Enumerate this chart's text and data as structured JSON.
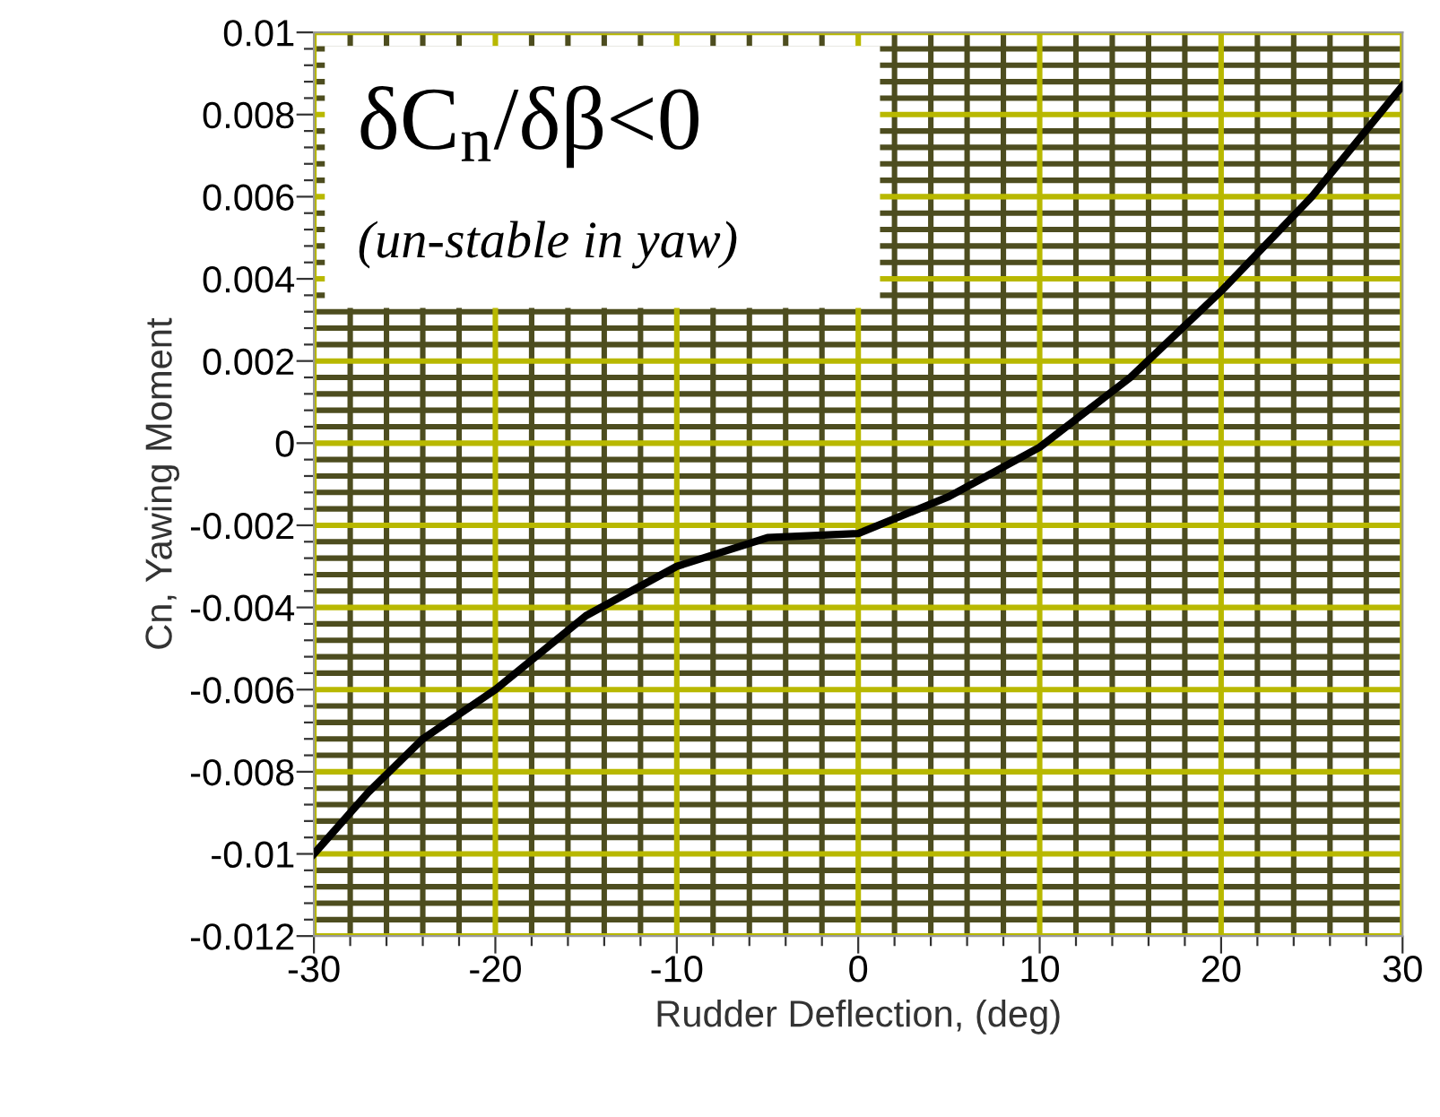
{
  "chart_data": {
    "type": "line",
    "xlabel": "Rudder Deflection, (deg)",
    "ylabel": "Cn, Yawing Moment",
    "annotations": [
      "δC$_{n}$/δβ<0",
      "(un-stable in yaw)"
    ],
    "series": [
      {
        "color": "#000000",
        "x": [
          -30,
          -27,
          -24,
          -20,
          -15,
          -10,
          -5,
          0,
          5,
          10,
          15,
          20,
          25,
          30
        ],
        "values": [
          -0.01,
          -0.0085,
          -0.0072,
          -0.006,
          -0.0042,
          -0.003,
          -0.0023,
          -0.0022,
          -0.0013,
          -0.0001,
          0.0016,
          0.0037,
          0.006,
          0.0087
        ]
      }
    ],
    "xlim": [
      -30,
      30
    ],
    "xticks": [
      -30,
      {
        "value": -28,
        "label": null
      },
      {
        "value": -26,
        "label": null
      },
      {
        "value": -24,
        "label": null
      },
      {
        "value": -22,
        "label": null
      },
      -20,
      {
        "value": -18,
        "label": null
      },
      {
        "value": -16,
        "label": null
      },
      {
        "value": -14,
        "label": null
      },
      {
        "value": -12,
        "label": null
      },
      -10,
      {
        "value": -8,
        "label": null
      },
      {
        "value": -6,
        "label": null
      },
      {
        "value": -4,
        "label": null
      },
      {
        "value": -2,
        "label": null
      },
      0,
      {
        "value": 2,
        "label": null
      },
      {
        "value": 4,
        "label": null
      },
      {
        "value": 6,
        "label": null
      },
      {
        "value": 8,
        "label": null
      },
      10,
      {
        "value": 12,
        "label": null
      },
      {
        "value": 14,
        "label": null
      },
      {
        "value": 16,
        "label": null
      },
      {
        "value": 18,
        "label": null
      },
      20,
      {
        "value": 22,
        "label": null
      },
      {
        "value": 24,
        "label": null
      },
      {
        "value": 26,
        "label": null
      },
      {
        "value": 28,
        "label": null
      },
      30
    ],
    "ylim": [
      -0.012,
      0.01
    ],
    "yticks": [
      -0.012,
      {
        "value": -0.0116,
        "label": null
      },
      {
        "value": -0.0112,
        "label": null
      },
      {
        "value": -0.0108,
        "label": null
      },
      {
        "value": -0.0104,
        "label": null
      },
      -0.01,
      {
        "value": -0.0096,
        "label": null
      },
      {
        "value": -0.0092,
        "label": null
      },
      {
        "value": -0.0088,
        "label": null
      },
      {
        "value": -0.0084,
        "label": null
      },
      -0.008,
      {
        "value": -0.0076,
        "label": null
      },
      {
        "value": -0.0072,
        "label": null
      },
      {
        "value": -0.0068,
        "label": null
      },
      {
        "value": -0.0064,
        "label": null
      },
      -0.006,
      {
        "value": -0.0056,
        "label": null
      },
      {
        "value": -0.0052,
        "label": null
      },
      {
        "value": -0.0048,
        "label": null
      },
      {
        "value": -0.0044,
        "label": null
      },
      -0.004,
      {
        "value": -0.0036,
        "label": null
      },
      {
        "value": -0.0032,
        "label": null
      },
      {
        "value": -0.0028,
        "label": null
      },
      {
        "value": -0.0024,
        "label": null
      },
      -0.002,
      {
        "value": -0.0016,
        "label": null
      },
      {
        "value": -0.0012,
        "label": null
      },
      {
        "value": -0.0008,
        "label": null
      },
      {
        "value": -0.0004,
        "label": null
      },
      0,
      {
        "value": 0.0004,
        "label": null
      },
      {
        "value": 0.0008,
        "label": null
      },
      {
        "value": 0.0012,
        "label": null
      },
      {
        "value": 0.0016,
        "label": null
      },
      0.002,
      {
        "value": 0.0024,
        "label": null
      },
      {
        "value": 0.0028,
        "label": null
      },
      {
        "value": 0.0032,
        "label": null
      },
      {
        "value": 0.0036,
        "label": null
      },
      0.004,
      {
        "value": 0.0044,
        "label": null
      },
      {
        "value": 0.0048,
        "label": null
      },
      {
        "value": 0.0052,
        "label": null
      },
      {
        "value": 0.0056,
        "label": null
      },
      0.006,
      {
        "value": 0.0064,
        "label": null
      },
      {
        "value": 0.0068,
        "label": null
      },
      {
        "value": 0.0072,
        "label": null
      },
      {
        "value": 0.0076,
        "label": null
      },
      0.008,
      {
        "value": 0.0084,
        "label": null
      },
      {
        "value": 0.0088,
        "label": null
      },
      {
        "value": 0.0092,
        "label": null
      },
      {
        "value": 0.0096,
        "label": null
      },
      0.01
    ],
    "grid": true,
    "marker": "none",
    "line_style": "solid"
  }
}
